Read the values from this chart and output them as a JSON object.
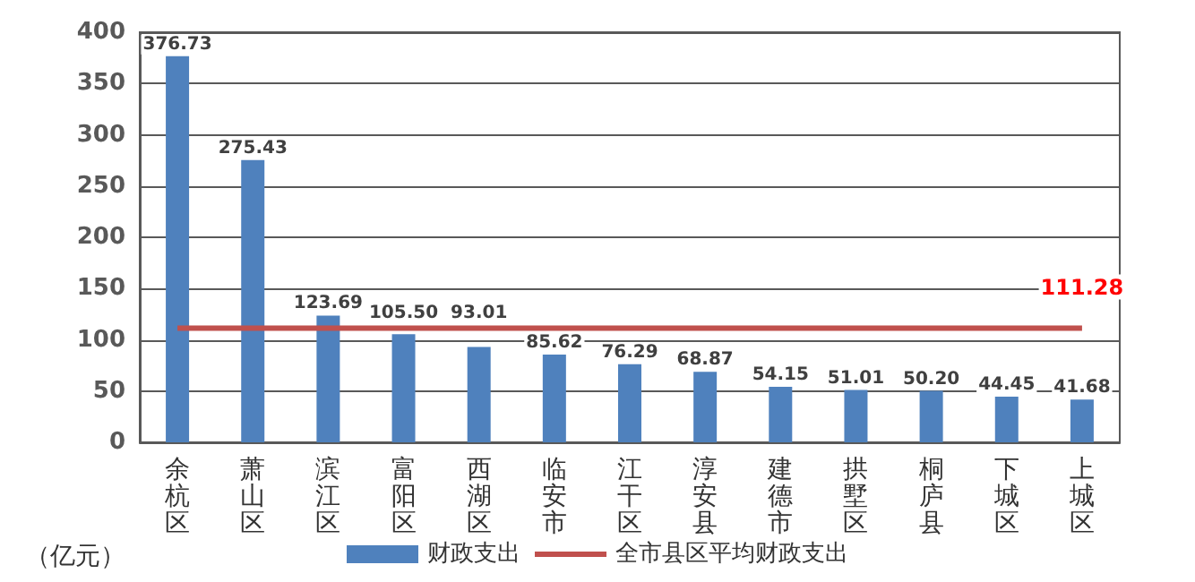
{
  "chart_data": {
    "type": "bar",
    "ylabel": "（亿元）",
    "categories": [
      "余杭区",
      "萧山区",
      "滨江区",
      "富阳区",
      "西湖区",
      "临安市",
      "江干区",
      "淳安县",
      "建德市",
      "拱墅区",
      "桐庐县",
      "下城区",
      "上城区"
    ],
    "series": [
      {
        "name": "财政支出",
        "color": "#4f81bd",
        "values": [
          376.73,
          275.43,
          123.69,
          105.5,
          93.01,
          85.62,
          76.29,
          68.87,
          54.15,
          51.01,
          50.2,
          44.45,
          41.68
        ],
        "value_labels": [
          "376.73",
          "275.43",
          "123.69",
          "105.50",
          "93.01",
          "85.62",
          "76.29",
          "68.87",
          "54.15",
          "51.01",
          "50.20",
          "44.45",
          "41.68"
        ]
      },
      {
        "name": "全市县区平均财政支出",
        "type": "line",
        "color": "#c0504d",
        "values": [
          111.28,
          111.28,
          111.28,
          111.28,
          111.28,
          111.28,
          111.28,
          111.28,
          111.28,
          111.28,
          111.28,
          111.28,
          111.28
        ],
        "value_labels": [
          null,
          null,
          null,
          null,
          null,
          null,
          null,
          null,
          null,
          null,
          null,
          null,
          "111.28"
        ]
      }
    ],
    "ylim": [
      0,
      400
    ],
    "yticks": [
      0,
      50,
      100,
      150,
      200,
      250,
      300,
      350,
      400
    ],
    "grid": "y",
    "legend": "bottom",
    "marker": "none"
  }
}
